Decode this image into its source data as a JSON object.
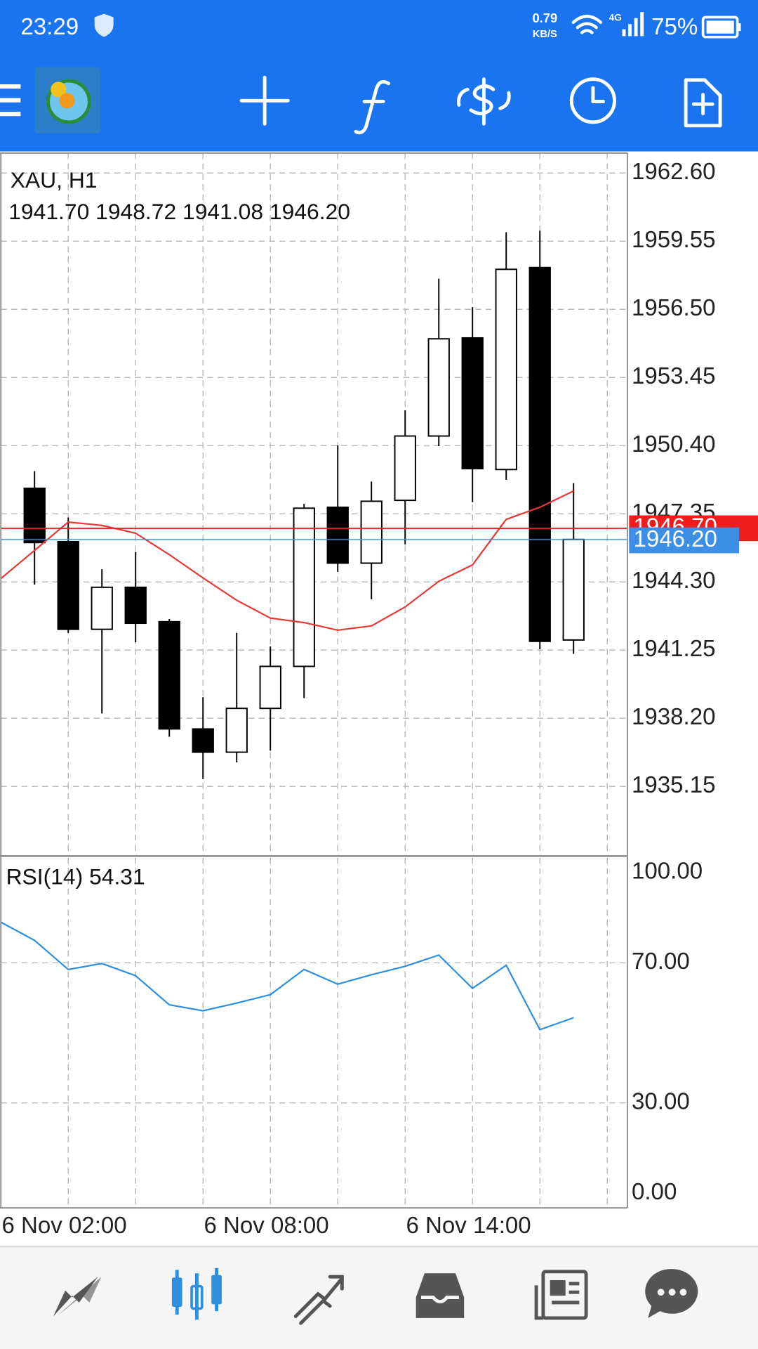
{
  "status_bar": {
    "time": "23:29",
    "speed": "0.79",
    "speed_unit": "KB/S",
    "network": "4G",
    "battery": "75%"
  },
  "chart_data": [
    {
      "type": "candlestick",
      "title": "XAU, H1",
      "subtitle": "1941.70 1948.72 1941.08 1946.20",
      "categories": [
        "6 Nov 02:00",
        null,
        null,
        null,
        null,
        null,
        "6 Nov 08:00",
        null,
        null,
        null,
        null,
        null,
        "6 Nov 14:00",
        null,
        null,
        null,
        null,
        null
      ],
      "open": [
        null,
        1948.49,
        1946.1,
        1942.18,
        1944.06,
        1942.52,
        1937.72,
        1936.68,
        1938.64,
        1940.52,
        1947.64,
        1945.14,
        1947.95,
        1950.83,
        1955.22,
        1949.33,
        1958.37,
        1941.7
      ],
      "high": [
        null,
        1949.25,
        1947.18,
        1944.87,
        1945.64,
        1942.64,
        1939.14,
        1942.02,
        1941.41,
        1947.79,
        1950.41,
        1948.79,
        1951.98,
        1957.87,
        1956.6,
        1959.95,
        1960.02,
        1948.72
      ],
      "low": [
        null,
        1944.18,
        1942.02,
        1938.41,
        1941.6,
        1937.37,
        1935.48,
        1936.22,
        1936.75,
        1939.1,
        1944.75,
        1943.52,
        1945.98,
        1950.37,
        1947.87,
        1948.87,
        1941.29,
        1941.08
      ],
      "close": [
        null,
        1946.06,
        1942.18,
        1944.06,
        1942.45,
        1937.72,
        1936.68,
        1938.64,
        1940.52,
        1947.6,
        1945.14,
        1947.91,
        1950.83,
        1955.18,
        1949.37,
        1958.29,
        1941.64,
        1946.2
      ],
      "up_color": "#ffffff",
      "down_color": "#000000",
      "overlay": {
        "color": "#e53935",
        "values": [
          1944.45,
          1945.71,
          1946.98,
          1946.83,
          1946.48,
          1945.52,
          1944.48,
          1943.48,
          1942.68,
          1942.48,
          1942.14,
          1942.33,
          1943.18,
          1944.33,
          1945.06,
          1947.1,
          1947.64,
          1948.37
        ]
      },
      "ask": {
        "value": 1946.7,
        "label": "1946.70",
        "color": "#f01d1d"
      },
      "bid": {
        "value": 1946.2,
        "label": "1946.20",
        "color": "#3d8fe6"
      },
      "ylim": [
        1932.07,
        1963.49
      ],
      "yticks": [
        {
          "value": 1962.6,
          "label": "1962.60"
        },
        {
          "value": 1959.55,
          "label": "1959.55"
        },
        {
          "value": 1956.5,
          "label": "1956.50"
        },
        {
          "value": 1953.45,
          "label": "1953.45"
        },
        {
          "value": 1950.4,
          "label": "1950.40"
        },
        {
          "value": 1947.35,
          "label": "1947.35"
        },
        {
          "value": 1944.3,
          "label": "1944.30"
        },
        {
          "value": 1941.25,
          "label": "1941.25"
        },
        {
          "value": 1938.2,
          "label": "1938.20"
        },
        {
          "value": 1935.15,
          "label": "1935.15"
        }
      ],
      "grid": true
    },
    {
      "type": "line",
      "title": "RSI(14) 54.31",
      "color": "#2f8fdc",
      "values": [
        81.6,
        76.4,
        68.1,
        69.8,
        66.3,
        58.0,
        56.3,
        58.5,
        60.9,
        68.1,
        63.9,
        66.6,
        69.0,
        72.2,
        62.7,
        69.3,
        50.9,
        54.31
      ],
      "ylim": [
        0,
        100
      ],
      "yticks": [
        {
          "value": 100,
          "label": "100.00"
        },
        {
          "value": 70,
          "label": "70.00"
        },
        {
          "value": 30,
          "label": "30.00"
        },
        {
          "value": 0,
          "label": "0.00"
        }
      ],
      "grid": true
    }
  ]
}
